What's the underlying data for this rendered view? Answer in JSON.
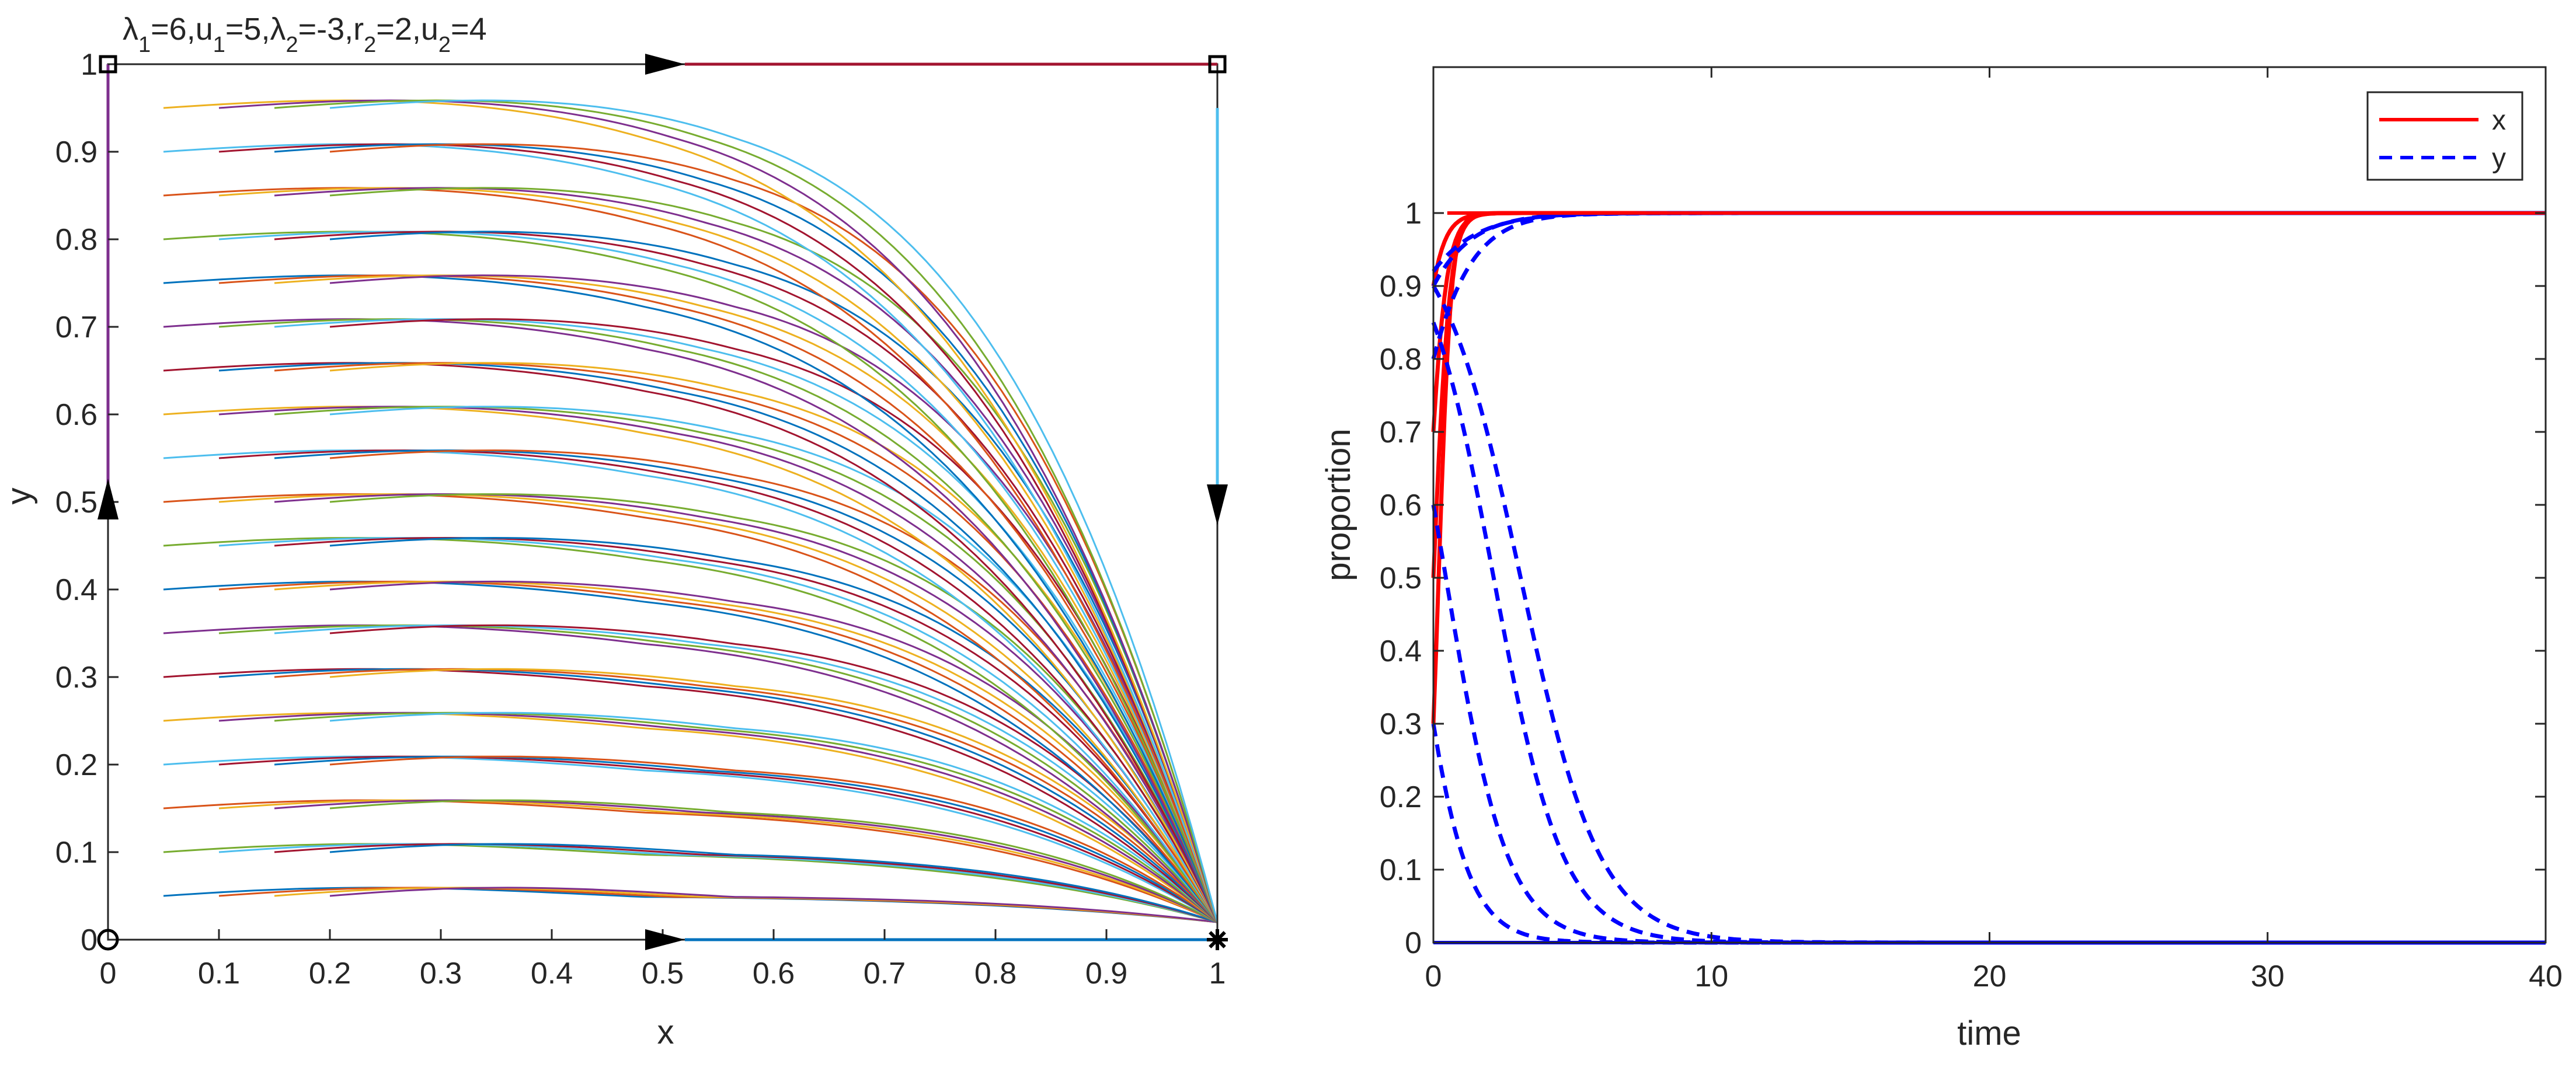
{
  "chart_data": [
    {
      "type": "line",
      "subtype": "phase-portrait",
      "title": "λ1=6,u1=5,λ2=-3,r2=2,u2=4",
      "title_parts": [
        {
          "t": "λ",
          "s": "n"
        },
        {
          "t": "1",
          "s": "sub"
        },
        {
          "t": "=6,u",
          "s": "n"
        },
        {
          "t": "1",
          "s": "sub"
        },
        {
          "t": "=5,",
          "s": "n"
        },
        {
          "t": "λ",
          "s": "n"
        },
        {
          "t": "2",
          "s": "sub"
        },
        {
          "t": "=-3,r",
          "s": "n"
        },
        {
          "t": "2",
          "s": "sub"
        },
        {
          "t": "=2,u",
          "s": "n"
        },
        {
          "t": "2",
          "s": "sub"
        },
        {
          "t": "=4",
          "s": "n"
        }
      ],
      "xlabel": "x",
      "ylabel": "y",
      "xlim": [
        0,
        1
      ],
      "ylim": [
        0,
        1
      ],
      "xticks": [
        "0",
        "0.1",
        "0.2",
        "0.3",
        "0.4",
        "0.5",
        "0.6",
        "0.7",
        "0.8",
        "0.9",
        "1"
      ],
      "yticks": [
        "0",
        "0.1",
        "0.2",
        "0.3",
        "0.4",
        "0.5",
        "0.6",
        "0.7",
        "0.8",
        "0.9",
        "1"
      ],
      "trajectory_start_x": [
        0.05,
        0.1,
        0.15,
        0.2
      ],
      "trajectory_start_y": [
        0.05,
        0.1,
        0.15,
        0.2,
        0.25,
        0.3,
        0.35,
        0.4,
        0.45,
        0.5,
        0.55,
        0.6,
        0.65,
        0.7,
        0.75,
        0.8,
        0.85,
        0.9,
        0.95
      ],
      "trajectory_end_y_at_x1": 0.02,
      "equilibria": [
        {
          "x": 0,
          "y": 0,
          "marker": "circle",
          "stable": false
        },
        {
          "x": 1,
          "y": 0,
          "marker": "asterisk",
          "stable": true
        },
        {
          "x": 0,
          "y": 1,
          "marker": "square",
          "stable": false
        },
        {
          "x": 1,
          "y": 1,
          "marker": "square",
          "stable": false
        }
      ],
      "flow_arrows": [
        {
          "x": 0.5,
          "y": 1,
          "direction": "right"
        },
        {
          "x": 0.5,
          "y": 0,
          "direction": "right"
        },
        {
          "x": 0,
          "y": 0.5,
          "direction": "up"
        },
        {
          "x": 1,
          "y": 0.5,
          "direction": "down"
        }
      ],
      "colors": [
        "#0072bd",
        "#d95319",
        "#edb120",
        "#7e2f8e",
        "#77ac30",
        "#4dbeee",
        "#a2142f"
      ]
    },
    {
      "type": "line",
      "subtype": "time-evolution",
      "xlabel": "time",
      "ylabel": "proportion",
      "xlim": [
        0,
        40
      ],
      "ylim": [
        0,
        1.2
      ],
      "xticks": [
        "0",
        "10",
        "20",
        "30",
        "40"
      ],
      "yticks": [
        "0",
        "0.1",
        "0.2",
        "0.3",
        "0.4",
        "0.5",
        "0.6",
        "0.7",
        "0.8",
        "0.9",
        "1"
      ],
      "legend": {
        "position": "top-right",
        "entries": [
          "x",
          "y"
        ]
      },
      "series": [
        {
          "name": "x",
          "style": "solid",
          "color": "#ff0000",
          "x0": [
            0.3,
            0.5,
            0.7,
            0.9
          ],
          "rise_rate": [
            4.5,
            3.5,
            3.0,
            2.5
          ],
          "final": 1
        },
        {
          "name": "y",
          "style": "dashed",
          "color": "#0000ff",
          "y0": [
            0.3,
            0.6,
            0.85,
            0.9
          ],
          "decay_rate": [
            1.1,
            0.9,
            0.8,
            0.7
          ],
          "final": 0
        },
        {
          "name": "y",
          "style": "dashed",
          "color": "#0000ff",
          "y0": [
            0.8,
            0.9,
            0.92
          ],
          "rise_rate": [
            0.9,
            0.8,
            0.7
          ],
          "final": 1
        }
      ]
    }
  ]
}
